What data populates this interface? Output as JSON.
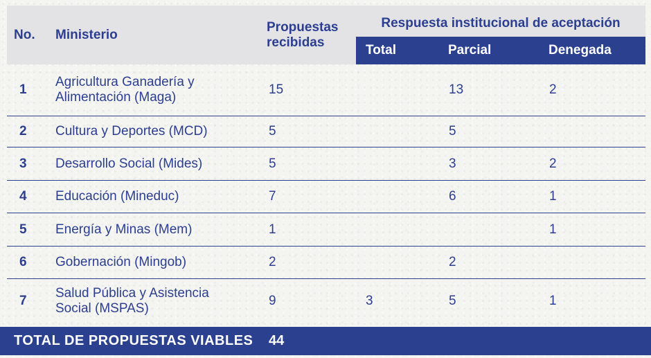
{
  "colors": {
    "paper": "#f4f4f1",
    "header_gray": "#e3e3e6",
    "bar_blue": "#2b4190",
    "navy_text": "#2c3e8f",
    "divider": "#2e3f8e",
    "white": "#ffffff"
  },
  "table": {
    "header": {
      "no_label": "No.",
      "ministerio_label": "Ministerio",
      "propuestas_label": "Propuestas recibidas",
      "respuesta_group_label": "Respuesta institucional de aceptación",
      "total_label": "Total",
      "parcial_label": "Parcial",
      "denegada_label": "Denegada"
    },
    "rows": [
      {
        "no": "1",
        "ministry": "Agricultura Ganadería y Alimentación (Maga)",
        "recibidas": "15",
        "total": "",
        "parcial": "13",
        "denegada": "2"
      },
      {
        "no": "2",
        "ministry": "Cultura y Deportes (MCD)",
        "recibidas": "5",
        "total": "",
        "parcial": "5",
        "denegada": ""
      },
      {
        "no": "3",
        "ministry": "Desarrollo Social (Mides)",
        "recibidas": "5",
        "total": "",
        "parcial": "3",
        "denegada": "2"
      },
      {
        "no": "4",
        "ministry": "Educación (Mineduc)",
        "recibidas": "7",
        "total": "",
        "parcial": "6",
        "denegada": "1"
      },
      {
        "no": "5",
        "ministry": "Energía y Minas (Mem)",
        "recibidas": "1",
        "total": "",
        "parcial": "",
        "denegada": "1"
      },
      {
        "no": "6",
        "ministry": "Gobernación (Mingob)",
        "recibidas": "2",
        "total": "",
        "parcial": "2",
        "denegada": ""
      },
      {
        "no": "7",
        "ministry": "Salud Pública y Asistencia Social (MSPAS)",
        "recibidas": "9",
        "total": "3",
        "parcial": "5",
        "denegada": "1"
      }
    ],
    "footer": {
      "label": "TOTAL DE PROPUESTAS VIABLES",
      "value": "44"
    }
  },
  "chart_data": {
    "type": "table",
    "columns": [
      "No.",
      "Ministerio",
      "Propuestas recibidas",
      "Total",
      "Parcial",
      "Denegada"
    ],
    "column_group": {
      "label": "Respuesta institucional de aceptación",
      "spans": [
        "Total",
        "Parcial",
        "Denegada"
      ]
    },
    "rows": [
      [
        1,
        "Agricultura Ganadería y Alimentación (Maga)",
        15,
        null,
        13,
        2
      ],
      [
        2,
        "Cultura y Deportes (MCD)",
        5,
        null,
        5,
        null
      ],
      [
        3,
        "Desarrollo Social (Mides)",
        5,
        null,
        3,
        2
      ],
      [
        4,
        "Educación (Mineduc)",
        7,
        null,
        6,
        1
      ],
      [
        5,
        "Energía y Minas (Mem)",
        1,
        null,
        null,
        1
      ],
      [
        6,
        "Gobernación (Mingob)",
        2,
        null,
        2,
        null
      ],
      [
        7,
        "Salud Pública y Asistencia Social (MSPAS)",
        9,
        3,
        5,
        1
      ]
    ],
    "footer": {
      "label": "TOTAL DE PROPUESTAS VIABLES",
      "value": 44
    }
  }
}
